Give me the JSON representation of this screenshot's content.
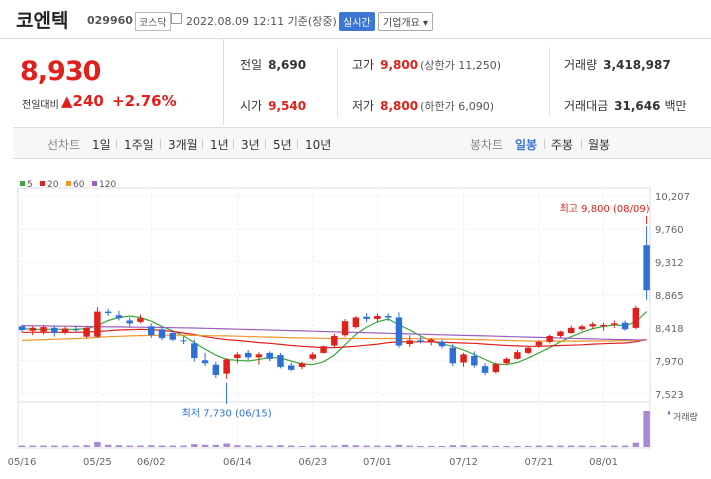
{
  "header": {
    "name": "코엔텍",
    "code": "029960",
    "market": "코스닥",
    "time": "2022.08.09 12:11 기준(장중)",
    "realtime_label": "실시간",
    "info_label": "기업개요 ▾"
  },
  "quote": {
    "price": "8,930",
    "change_label": "전일대비",
    "change": "▲240",
    "percent": "+2.76%",
    "prev_close_label": "전일",
    "prev_close": "8,690",
    "high_label": "고가",
    "high": "9,800",
    "upper_limit": "(상한가 11,250)",
    "volume_label": "거래량",
    "volume": "3,418,987",
    "open_label": "시가",
    "open": "9,540",
    "low_label": "저가",
    "low": "8,800",
    "lower_limit": "(하한가 6,090)",
    "amount_label": "거래대금",
    "amount": "31,646",
    "amount_unit": "백만"
  },
  "tabs": {
    "line_label": "선차트",
    "line_items": [
      "1일",
      "1주일",
      "3개월",
      "1년",
      "3년",
      "5년",
      "10년"
    ],
    "candle_label": "봉차트",
    "candle_items": [
      "일봉",
      "주봉",
      "월봉"
    ],
    "candle_selected": "일봉"
  },
  "colors": {
    "up": "#e0201b",
    "down": "#2f6fd8",
    "ma5": "#3aa83a",
    "ma20": "#e0201b",
    "ma60": "#f0962a",
    "ma120": "#9b5fc0"
  },
  "chart_data": {
    "type": "candlestick",
    "legend": [
      "5",
      "20",
      "60",
      "120"
    ],
    "y_ticks": [
      "10,207",
      "9,760",
      "9,312",
      "8,865",
      "8,418",
      "7,970",
      "7,523"
    ],
    "ylim": [
      7523,
      10207
    ],
    "x_ticks": [
      "05/16",
      "05/25",
      "06/02",
      "06/14",
      "06/23",
      "07/01",
      "07/12",
      "07/21",
      "08/01"
    ],
    "x_tick_index": [
      0,
      7,
      12,
      20,
      27,
      33,
      41,
      48,
      54
    ],
    "volume_label": "거래량",
    "max_annotation": "최고 9,800 (08/09)",
    "min_annotation": "최저 7,730 (06/15)",
    "candles": [
      [
        8440,
        8460,
        8360,
        8390
      ],
      [
        8380,
        8450,
        8320,
        8420
      ],
      [
        8370,
        8460,
        8330,
        8430
      ],
      [
        8420,
        8450,
        8300,
        8350
      ],
      [
        8360,
        8440,
        8330,
        8410
      ],
      [
        8400,
        8450,
        8360,
        8390
      ],
      [
        8300,
        8440,
        8280,
        8420
      ],
      [
        8300,
        8700,
        8280,
        8640
      ],
      [
        8640,
        8680,
        8580,
        8620
      ],
      [
        8590,
        8650,
        8520,
        8550
      ],
      [
        8520,
        8560,
        8440,
        8480
      ],
      [
        8500,
        8600,
        8480,
        8550
      ],
      [
        8440,
        8480,
        8280,
        8320
      ],
      [
        8400,
        8440,
        8250,
        8280
      ],
      [
        8350,
        8380,
        8240,
        8260
      ],
      [
        8250,
        8300,
        8200,
        8240
      ],
      [
        8210,
        8260,
        7960,
        8010
      ],
      [
        7980,
        8080,
        7900,
        7940
      ],
      [
        7920,
        7960,
        7740,
        7780
      ],
      [
        7800,
        8010,
        7730,
        7990
      ],
      [
        8010,
        8090,
        7940,
        8060
      ],
      [
        8080,
        8120,
        7980,
        8020
      ],
      [
        8020,
        8090,
        7920,
        8060
      ],
      [
        8080,
        8100,
        7970,
        8000
      ],
      [
        8050,
        8080,
        7870,
        7890
      ],
      [
        7910,
        7950,
        7830,
        7850
      ],
      [
        7890,
        7960,
        7860,
        7940
      ],
      [
        8000,
        8090,
        7980,
        8060
      ],
      [
        8080,
        8180,
        8070,
        8170
      ],
      [
        8180,
        8340,
        8150,
        8310
      ],
      [
        8320,
        8540,
        8300,
        8510
      ],
      [
        8430,
        8580,
        8410,
        8560
      ],
      [
        8570,
        8620,
        8500,
        8540
      ],
      [
        8540,
        8610,
        8500,
        8580
      ],
      [
        8580,
        8620,
        8510,
        8560
      ],
      [
        8560,
        8630,
        8150,
        8180
      ],
      [
        8200,
        8320,
        8160,
        8250
      ],
      [
        8250,
        8300,
        8210,
        8230
      ],
      [
        8230,
        8280,
        8180,
        8260
      ],
      [
        8230,
        8260,
        8140,
        8170
      ],
      [
        8150,
        8200,
        7900,
        7940
      ],
      [
        7950,
        8080,
        7890,
        8060
      ],
      [
        8040,
        8100,
        7880,
        7910
      ],
      [
        7900,
        7940,
        7780,
        7810
      ],
      [
        7820,
        7950,
        7800,
        7930
      ],
      [
        7940,
        8020,
        7920,
        8000
      ],
      [
        8000,
        8120,
        7990,
        8090
      ],
      [
        8080,
        8170,
        8060,
        8150
      ],
      [
        8180,
        8250,
        8150,
        8230
      ],
      [
        8230,
        8330,
        8210,
        8310
      ],
      [
        8310,
        8380,
        8290,
        8370
      ],
      [
        8350,
        8450,
        8340,
        8420
      ],
      [
        8400,
        8460,
        8380,
        8440
      ],
      [
        8440,
        8500,
        8400,
        8470
      ],
      [
        8440,
        8490,
        8380,
        8460
      ],
      [
        8460,
        8520,
        8420,
        8480
      ],
      [
        8490,
        8520,
        8380,
        8400
      ],
      [
        8420,
        8720,
        8400,
        8690
      ],
      [
        9540,
        9800,
        8800,
        8930
      ]
    ],
    "volumes": [
      4,
      4,
      4,
      4,
      4,
      4,
      5,
      14,
      6,
      5,
      4,
      4,
      5,
      4,
      4,
      4,
      8,
      6,
      6,
      10,
      5,
      4,
      4,
      4,
      5,
      4,
      3,
      4,
      4,
      4,
      6,
      5,
      4,
      4,
      4,
      6,
      4,
      3,
      3,
      3,
      5,
      5,
      4,
      4,
      3,
      3,
      3,
      3,
      4,
      4,
      4,
      4,
      4,
      3,
      4,
      4,
      4,
      12,
      100
    ],
    "ma5": [
      8410,
      8400,
      8400,
      8400,
      8400,
      8402,
      8408,
      8450,
      8520,
      8560,
      8580,
      8560,
      8510,
      8440,
      8380,
      8310,
      8220,
      8130,
      8050,
      7990,
      7980,
      7970,
      7990,
      8020,
      8010,
      7970,
      7930,
      7920,
      7960,
      8050,
      8190,
      8330,
      8430,
      8500,
      8540,
      8460,
      8390,
      8310,
      8240,
      8200,
      8170,
      8120,
      8060,
      7990,
      7930,
      7920,
      7950,
      8010,
      8080,
      8150,
      8230,
      8300,
      8360,
      8410,
      8440,
      8460,
      8450,
      8500,
      8640
    ],
    "ma20": [
      8360,
      8360,
      8360,
      8360,
      8360,
      8360,
      8362,
      8370,
      8380,
      8390,
      8395,
      8400,
      8395,
      8385,
      8370,
      8350,
      8330,
      8300,
      8280,
      8260,
      8250,
      8235,
      8220,
      8210,
      8195,
      8180,
      8170,
      8160,
      8150,
      8150,
      8160,
      8170,
      8185,
      8200,
      8220,
      8230,
      8230,
      8230,
      8230,
      8225,
      8220,
      8215,
      8210,
      8200,
      8190,
      8180,
      8175,
      8170,
      8170,
      8175,
      8180,
      8185,
      8190,
      8200,
      8205,
      8210,
      8215,
      8230,
      8260
    ],
    "ma60": [
      8250,
      8255,
      8260,
      8265,
      8270,
      8275,
      8280,
      8290,
      8300,
      8305,
      8310,
      8315,
      8318,
      8320,
      8320,
      8320,
      8318,
      8315,
      8312,
      8310,
      8306,
      8302,
      8298,
      8294,
      8290,
      8286,
      8282,
      8280,
      8278,
      8276,
      8276,
      8276,
      8276,
      8276,
      8276,
      8275,
      8274,
      8272,
      8270,
      8268,
      8266,
      8263,
      8260,
      8256,
      8252,
      8248,
      8245,
      8242,
      8240,
      8240,
      8240,
      8240,
      8240,
      8241,
      8242,
      8243,
      8245,
      8248,
      8255
    ],
    "ma120": [
      8450,
      8448,
      8446,
      8444,
      8442,
      8440,
      8438,
      8436,
      8434,
      8432,
      8430,
      8428,
      8426,
      8424,
      8422,
      8420,
      8417,
      8414,
      8410,
      8406,
      8402,
      8398,
      8394,
      8390,
      8386,
      8382,
      8378,
      8374,
      8370,
      8366,
      8362,
      8358,
      8354,
      8350,
      8346,
      8342,
      8338,
      8334,
      8330,
      8326,
      8322,
      8318,
      8314,
      8310,
      8306,
      8302,
      8298,
      8294,
      8290,
      8286,
      8282,
      8278,
      8274,
      8270,
      8266,
      8262,
      8260,
      8258,
      8258
    ]
  }
}
